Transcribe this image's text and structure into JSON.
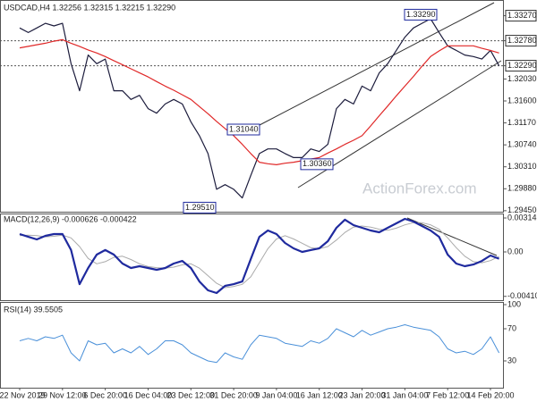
{
  "chart_data": [
    {
      "type": "line",
      "title": "USDCAD,H4  1.32256 1.32315 1.32215 1.32290",
      "watermark": "ActionForex.com",
      "ylim": [
        1.2943,
        1.3356
      ],
      "yticks": [
        {
          "value": 1.3327,
          "label": "1.33270",
          "boxed": true,
          "line": false
        },
        {
          "value": 1.3278,
          "label": "1.32780",
          "boxed": true,
          "line": true
        },
        {
          "value": 1.3229,
          "label": "1.32290",
          "boxed": true,
          "line": true
        },
        {
          "value": 1.3203,
          "label": "1.32030"
        },
        {
          "value": 1.316,
          "label": "1.31600"
        },
        {
          "value": 1.3117,
          "label": "1.31170"
        },
        {
          "value": 1.3074,
          "label": "1.30740"
        },
        {
          "value": 1.3031,
          "label": "1.30310"
        },
        {
          "value": 1.2988,
          "label": "1.29880"
        },
        {
          "value": 1.2945,
          "label": "1.29450"
        }
      ],
      "annotations": [
        {
          "label": "1.33290",
          "value": 1.3329
        },
        {
          "label": "1.31040",
          "value": 1.3104
        },
        {
          "label": "1.30360",
          "value": 1.3036
        },
        {
          "label": "1.29510",
          "value": 1.2951
        }
      ],
      "series": [
        {
          "color": "#1c1c3c",
          "width": 1.2,
          "values": [
            1.3303,
            1.3294,
            1.3303,
            1.3312,
            1.3307,
            1.3312,
            1.3233,
            1.318,
            1.325,
            1.3233,
            1.3242,
            1.318,
            1.318,
            1.3163,
            1.3171,
            1.3145,
            1.3136,
            1.3154,
            1.3163,
            1.3154,
            1.3119,
            1.3092,
            1.3057,
            1.2987,
            1.2996,
            1.2987,
            1.297,
            1.3014,
            1.3057,
            1.3066,
            1.3066,
            1.3057,
            1.3049,
            1.3049,
            1.3066,
            1.3061,
            1.3075,
            1.3145,
            1.3163,
            1.3154,
            1.3189,
            1.318,
            1.3215,
            1.3233,
            1.3259,
            1.3285,
            1.3303,
            1.3312,
            1.3321,
            1.3294,
            1.3268,
            1.3259,
            1.325,
            1.3247,
            1.3242,
            1.3259,
            1.3229
          ]
        },
        {
          "color": "#e02828",
          "width": 1.2,
          "values": [
            1.3264,
            1.3267,
            1.327,
            1.3273,
            1.3277,
            1.328,
            1.3273,
            1.3267,
            1.326,
            1.3254,
            1.3247,
            1.3239,
            1.3231,
            1.3223,
            1.3215,
            1.3207,
            1.3198,
            1.3189,
            1.3181,
            1.3172,
            1.3163,
            1.3149,
            1.3135,
            1.312,
            1.3106,
            1.3092,
            1.3075,
            1.3057,
            1.304,
            1.3037,
            1.3035,
            1.3038,
            1.304,
            1.3043,
            1.3046,
            1.3049,
            1.3058,
            1.3066,
            1.3075,
            1.3083,
            1.3092,
            1.3111,
            1.3131,
            1.315,
            1.317,
            1.3189,
            1.3208,
            1.3228,
            1.3247,
            1.3258,
            1.3268,
            1.3268,
            1.3268,
            1.3268,
            1.3263,
            1.3259,
            1.3254
          ]
        }
      ]
    },
    {
      "type": "line",
      "title": "MACD(12,26,9) -0.000626 -0.000422",
      "ylim": [
        -0.00446,
        0.00347
      ],
      "yticks": [
        {
          "value": 0.00314,
          "label": "0.00314"
        },
        {
          "value": 0,
          "label": "0.00"
        },
        {
          "value": -0.004108,
          "label": "-0.004108"
        }
      ],
      "series": [
        {
          "color": "#aaaaaa",
          "width": 1,
          "values": [
            0.0015,
            0.00155,
            0.0015,
            0.0014,
            0.00145,
            0.00155,
            0.0013,
            0.0005,
            -0.0006,
            -0.0011,
            -0.0009,
            -0.0005,
            -0.0004,
            -0.0007,
            -0.0011,
            -0.00135,
            -0.00145,
            -0.0015,
            -0.0014,
            -0.0012,
            -0.0011,
            -0.0015,
            -0.0022,
            -0.0029,
            -0.0033,
            -0.0032,
            -0.003,
            -0.0023,
            -0.001,
            0.0003,
            0.0012,
            0.0015,
            0.0012,
            0.0008,
            0.0004,
            0.0003,
            0.0005,
            0.0011,
            0.0018,
            0.0023,
            0.0024,
            0.0023,
            0.0021,
            0.002,
            0.0022,
            0.0025,
            0.0027,
            0.0027,
            0.0025,
            0.0021,
            0.0013,
            0.0004,
            -0.0004,
            -0.0009,
            -0.001,
            -0.0008,
            -0.00042
          ]
        },
        {
          "color": "#1f2a9e",
          "width": 2.2,
          "values": [
            0.00165,
            0.0014,
            0.00116,
            0.00149,
            0.00165,
            0.00165,
            0.00017,
            -0.00298,
            -0.00149,
            -0.00025,
            0.00017,
            -0.00025,
            -0.00107,
            -0.00149,
            -0.00132,
            -0.00149,
            -0.00165,
            -0.00149,
            -0.00107,
            -0.00083,
            -0.00149,
            -0.00273,
            -0.00355,
            -0.0038,
            -0.00314,
            -0.00298,
            -0.00273,
            -0.00066,
            0.0014,
            0.00198,
            0.00165,
            0.00083,
            0.00033,
            0,
            0.00017,
            0.00033,
            0.00099,
            0.00223,
            0.00298,
            0.00248,
            0.00223,
            0.00198,
            0.00182,
            0.00223,
            0.00264,
            0.00306,
            0.00281,
            0.0024,
            0.00198,
            0.0014,
            -0.00025,
            -0.00107,
            -0.00132,
            -0.00116,
            -0.00083,
            -0.00033,
            -0.00063
          ]
        }
      ]
    },
    {
      "type": "line",
      "title": "RSI(14) 39.5505",
      "ylim": [
        0,
        100
      ],
      "yticks": [
        100,
        70,
        30
      ],
      "categories": [
        "22 Nov 2019",
        null,
        null,
        null,
        null,
        "29 Nov 12:00",
        null,
        null,
        null,
        null,
        "6 Dec 20:00",
        null,
        null,
        null,
        null,
        "16 Dec 04:00",
        null,
        null,
        null,
        null,
        "23 Dec 12:00",
        null,
        null,
        null,
        null,
        "31 Dec 20:00",
        null,
        null,
        null,
        null,
        "9 Jan 04:00",
        null,
        null,
        null,
        null,
        "16 Jan 12:00",
        null,
        null,
        null,
        null,
        "23 Jan 20:00",
        null,
        null,
        null,
        null,
        "31 Jan 04:00",
        null,
        null,
        null,
        null,
        "7 Feb 12:00",
        null,
        null,
        null,
        null,
        "14 Feb 20:00",
        null
      ],
      "series": [
        {
          "color": "#4a90d9",
          "width": 1,
          "values": [
            55,
            58,
            55,
            60,
            58,
            62,
            40,
            30,
            55,
            50,
            52,
            40,
            45,
            40,
            48,
            38,
            45,
            55,
            55,
            50,
            40,
            35,
            30,
            28,
            40,
            35,
            32,
            50,
            62,
            60,
            58,
            52,
            50,
            48,
            55,
            52,
            58,
            70,
            65,
            60,
            68,
            62,
            66,
            70,
            72,
            75,
            72,
            70,
            68,
            60,
            45,
            40,
            42,
            38,
            45,
            60,
            40
          ]
        }
      ]
    }
  ]
}
